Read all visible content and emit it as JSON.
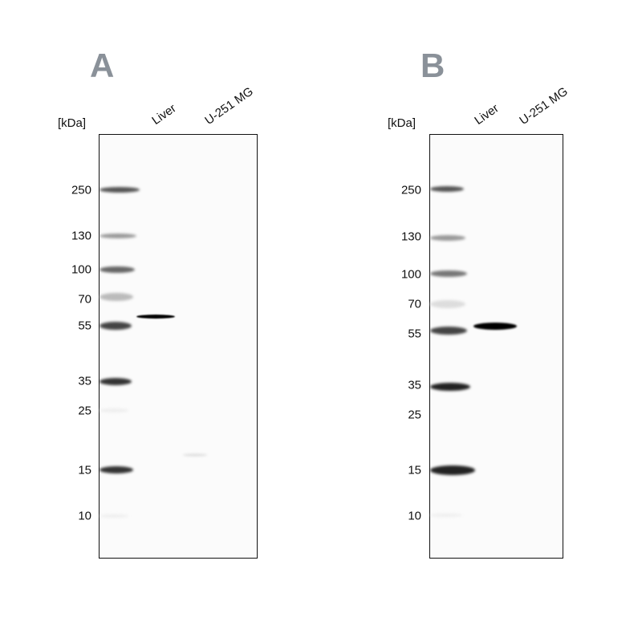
{
  "panels": [
    {
      "letter": "A",
      "unit": "[kDa]",
      "lanes": [
        "Liver",
        "U-251 MG"
      ],
      "markers": [
        "250",
        "130",
        "100",
        "70",
        "55",
        "35",
        "25",
        "15",
        "10"
      ]
    },
    {
      "letter": "B",
      "unit": "[kDa]",
      "lanes": [
        "Liver",
        "U-251 MG"
      ],
      "markers": [
        "250",
        "130",
        "100",
        "70",
        "55",
        "35",
        "25",
        "15",
        "10"
      ]
    }
  ]
}
